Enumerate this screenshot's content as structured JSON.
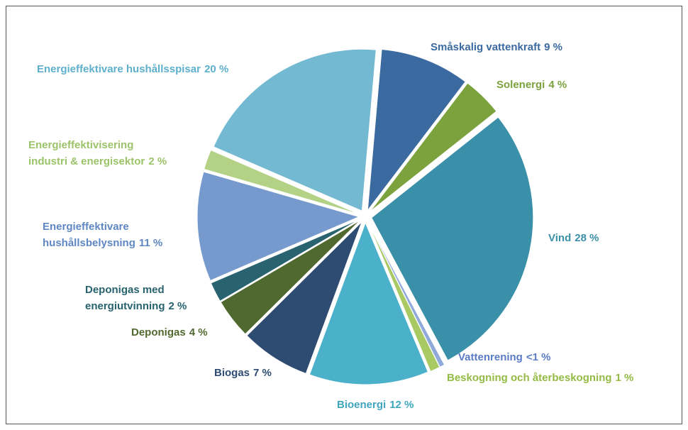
{
  "chart_data": {
    "type": "pie",
    "categories": [
      "Småskalig vattenkraft",
      "Solenergi",
      "Vind",
      "Vattenrening",
      "Beskogning och återbeskogning",
      "Bioenergi",
      "Biogas",
      "Deponigas",
      "Deponigas med energiutvinning",
      "Energieffektivare hushållsbelysning",
      "Energieffektivisering industri & energisektor",
      "Energieffektivare hushållsspisar"
    ],
    "values": [
      9,
      4,
      28,
      0.5,
      1,
      12,
      7,
      4,
      2,
      11,
      2,
      20
    ],
    "value_labels": [
      "9 %",
      "4 %",
      "28 %",
      "<1 %",
      "1 %",
      "12 %",
      "7 %",
      "4 %",
      "2 %",
      "11 %",
      "2 %",
      "20 %"
    ],
    "colors": [
      "#3b6aa1",
      "#7ba23d",
      "#3a90a8",
      "#8fa9da",
      "#a9c962",
      "#4bb0ca",
      "#2e4b72",
      "#50692f",
      "#28636f",
      "#769ace",
      "#b3d286",
      "#73b9d1"
    ]
  }
}
